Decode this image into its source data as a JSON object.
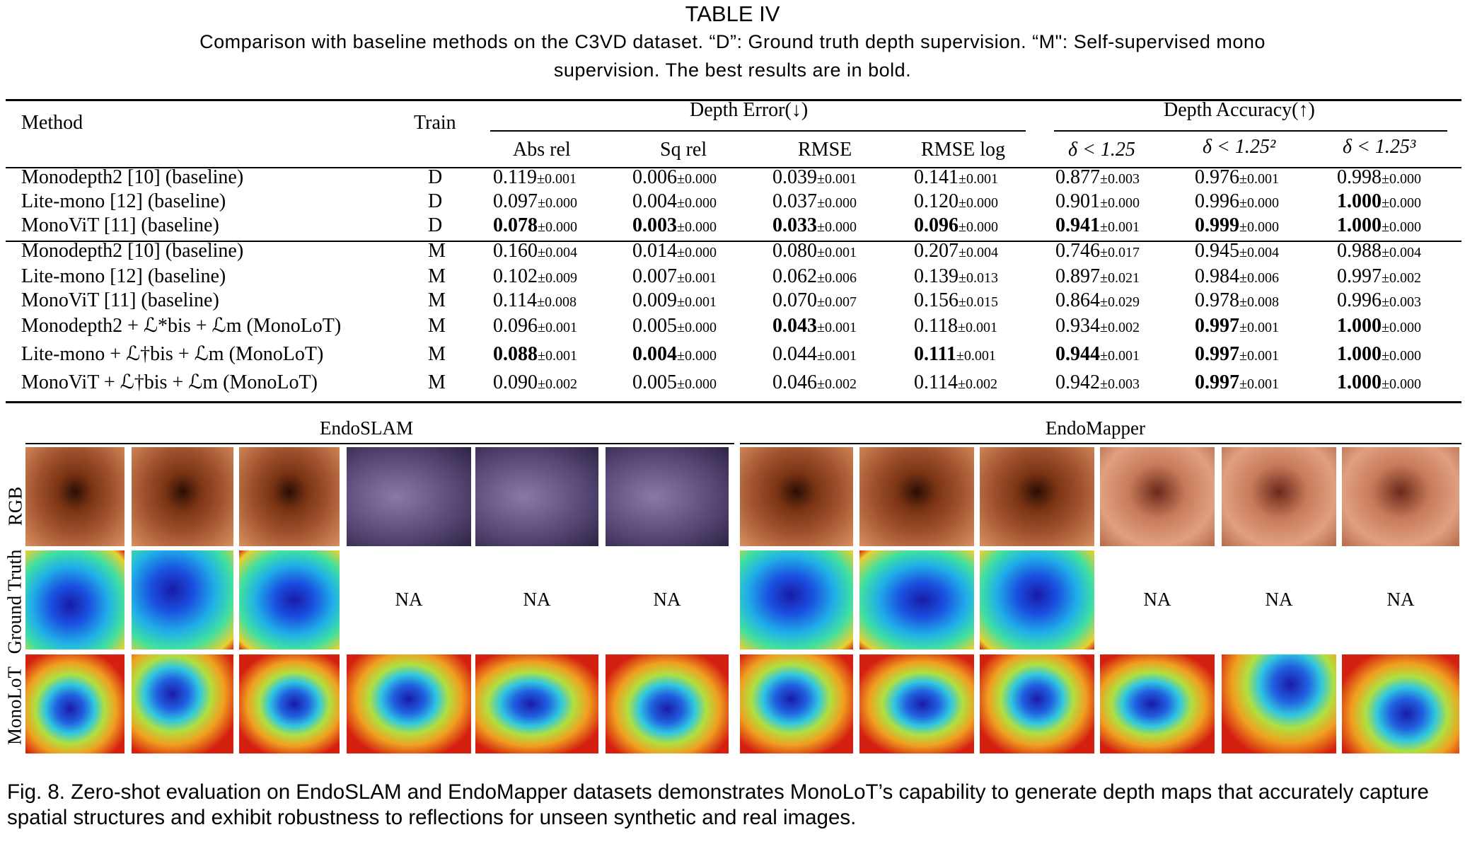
{
  "table": {
    "title": "TABLE IV",
    "caption_line1": "Comparison with baseline methods on the C3VD dataset. “D”: Ground truth depth supervision. “M\": Self-supervised mono",
    "caption_line2": "supervision. The best results are in bold.",
    "headers": {
      "method": "Method",
      "train": "Train",
      "depth_error": "Depth Error(↓)",
      "depth_accuracy": "Depth Accuracy(↑)",
      "abs_rel": "Abs rel",
      "sq_rel": "Sq rel",
      "rmse": "RMSE",
      "rmse_log": "RMSE log",
      "d1": "δ < 1.25",
      "d2": "δ < 1.25²",
      "d3": "δ < 1.25³"
    },
    "rows": [
      {
        "method": "Monodepth2 [10] (baseline)",
        "train": "D",
        "values": [
          [
            "0.119",
            "±0.001",
            false
          ],
          [
            "0.006",
            "±0.000",
            false
          ],
          [
            "0.039",
            "±0.001",
            false
          ],
          [
            "0.141",
            "±0.001",
            false
          ],
          [
            "0.877",
            "±0.003",
            false
          ],
          [
            "0.976",
            "±0.001",
            false
          ],
          [
            "0.998",
            "±0.000",
            false
          ]
        ]
      },
      {
        "method": "Lite-mono [12] (baseline)",
        "train": "D",
        "values": [
          [
            "0.097",
            "±0.000",
            false
          ],
          [
            "0.004",
            "±0.000",
            false
          ],
          [
            "0.037",
            "±0.000",
            false
          ],
          [
            "0.120",
            "±0.000",
            false
          ],
          [
            "0.901",
            "±0.000",
            false
          ],
          [
            "0.996",
            "±0.000",
            false
          ],
          [
            "1.000",
            "±0.000",
            true
          ]
        ]
      },
      {
        "method": "MonoViT [11] (baseline)",
        "train": "D",
        "values": [
          [
            "0.078",
            "±0.000",
            true
          ],
          [
            "0.003",
            "±0.000",
            true
          ],
          [
            "0.033",
            "±0.000",
            true
          ],
          [
            "0.096",
            "±0.000",
            true
          ],
          [
            "0.941",
            "±0.001",
            true
          ],
          [
            "0.999",
            "±0.000",
            true
          ],
          [
            "1.000",
            "±0.000",
            true
          ]
        ]
      },
      {
        "method": "Monodepth2 [10] (baseline)",
        "train": "M",
        "values": [
          [
            "0.160",
            "±0.004",
            false
          ],
          [
            "0.014",
            "±0.000",
            false
          ],
          [
            "0.080",
            "±0.001",
            false
          ],
          [
            "0.207",
            "±0.004",
            false
          ],
          [
            "0.746",
            "±0.017",
            false
          ],
          [
            "0.945",
            "±0.004",
            false
          ],
          [
            "0.988",
            "±0.004",
            false
          ]
        ]
      },
      {
        "method": "Lite-mono [12] (baseline)",
        "train": "M",
        "values": [
          [
            "0.102",
            "±0.009",
            false
          ],
          [
            "0.007",
            "±0.001",
            false
          ],
          [
            "0.062",
            "±0.006",
            false
          ],
          [
            "0.139",
            "±0.013",
            false
          ],
          [
            "0.897",
            "±0.021",
            false
          ],
          [
            "0.984",
            "±0.006",
            false
          ],
          [
            "0.997",
            "±0.002",
            false
          ]
        ]
      },
      {
        "method": "MonoViT [11] (baseline)",
        "train": "M",
        "values": [
          [
            "0.114",
            "±0.008",
            false
          ],
          [
            "0.009",
            "±0.001",
            false
          ],
          [
            "0.070",
            "±0.007",
            false
          ],
          [
            "0.156",
            "±0.015",
            false
          ],
          [
            "0.864",
            "±0.029",
            false
          ],
          [
            "0.978",
            "±0.008",
            false
          ],
          [
            "0.996",
            "±0.003",
            false
          ]
        ]
      },
      {
        "method": "Monodepth2 + ℒ*bis + ℒm (MonoLoT)",
        "train": "M",
        "values": [
          [
            "0.096",
            "±0.001",
            false
          ],
          [
            "0.005",
            "±0.000",
            false
          ],
          [
            "0.043",
            "±0.001",
            true
          ],
          [
            "0.118",
            "±0.001",
            false
          ],
          [
            "0.934",
            "±0.002",
            false
          ],
          [
            "0.997",
            "±0.001",
            true
          ],
          [
            "1.000",
            "±0.000",
            true
          ]
        ]
      },
      {
        "method": "Lite-mono + ℒ†bis + ℒm (MonoLoT)",
        "train": "M",
        "values": [
          [
            "0.088",
            "±0.001",
            true
          ],
          [
            "0.004",
            "±0.000",
            true
          ],
          [
            "0.044",
            "±0.001",
            false
          ],
          [
            "0.111",
            "±0.001",
            true
          ],
          [
            "0.944",
            "±0.001",
            true
          ],
          [
            "0.997",
            "±0.001",
            true
          ],
          [
            "1.000",
            "±0.000",
            true
          ]
        ]
      },
      {
        "method": "MonoViT + ℒ†bis + ℒm (MonoLoT)",
        "train": "M",
        "values": [
          [
            "0.090",
            "±0.002",
            false
          ],
          [
            "0.005",
            "±0.000",
            false
          ],
          [
            "0.046",
            "±0.002",
            false
          ],
          [
            "0.114",
            "±0.002",
            false
          ],
          [
            "0.942",
            "±0.003",
            false
          ],
          [
            "0.997",
            "±0.001",
            true
          ],
          [
            "1.000",
            "±0.000",
            true
          ]
        ]
      }
    ]
  },
  "figure": {
    "group_left": "EndoSLAM",
    "group_right": "EndoMapper",
    "row_labels": [
      "RGB",
      "Ground Truth",
      "MonoLoT"
    ],
    "na_label": "NA",
    "caption": "Fig. 8.   Zero-shot evaluation on EndoSLAM and EndoMapper datasets demonstrates MonoLoT’s capability to generate depth maps that accurately capture spatial structures and exhibit robustness to reflections for unseen synthetic and real images.",
    "colors": {
      "rgb_warm": "#a0522d",
      "rgb_purple": "#5a4a7a",
      "depth_far": "#1a1aa8",
      "depth_near": "#d42010"
    }
  }
}
